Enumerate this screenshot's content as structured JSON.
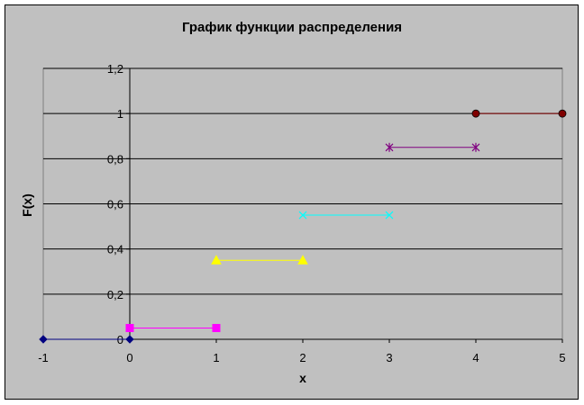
{
  "chart_data": {
    "type": "line",
    "title": "График функции распределения",
    "xlabel": "x",
    "ylabel": "F(x)",
    "xlim": [
      -1,
      5
    ],
    "ylim": [
      0,
      1.2
    ],
    "x_ticks": [
      "-1",
      "0",
      "1",
      "2",
      "3",
      "4",
      "5"
    ],
    "y_ticks": [
      "0",
      "0,2",
      "0,4",
      "0,6",
      "0,8",
      "1",
      "1,2"
    ],
    "grid": "horizontal",
    "series": [
      {
        "x": [
          -1,
          0
        ],
        "y": [
          0,
          0
        ],
        "color": "#000080",
        "marker": "diamond"
      },
      {
        "x": [
          0,
          1
        ],
        "y": [
          0.05,
          0.05
        ],
        "color": "#ff00ff",
        "marker": "square"
      },
      {
        "x": [
          1,
          2
        ],
        "y": [
          0.35,
          0.35
        ],
        "color": "#ffff00",
        "marker": "triangle"
      },
      {
        "x": [
          2,
          3
        ],
        "y": [
          0.55,
          0.55
        ],
        "color": "#00ffff",
        "marker": "x"
      },
      {
        "x": [
          3,
          4
        ],
        "y": [
          0.85,
          0.85
        ],
        "color": "#800080",
        "marker": "star"
      },
      {
        "x": [
          4,
          5
        ],
        "y": [
          1,
          1
        ],
        "color": "#800000",
        "marker": "circle"
      }
    ],
    "colors": {
      "chart_area": "#c0c0c0",
      "plot_area": "#c0c0c0",
      "gridline": "#000000",
      "axis": "#808080"
    }
  }
}
